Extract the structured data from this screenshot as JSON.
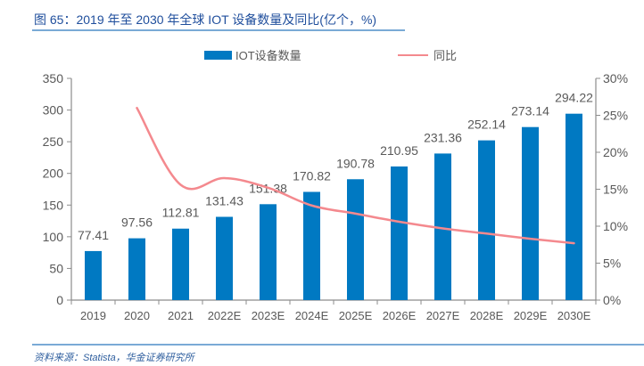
{
  "figure": {
    "title": "图 65：2019 年至 2030 年全球 IOT 设备数量及同比(亿个，%)",
    "source": "资料来源：Statista，华金证券研究所"
  },
  "colors": {
    "bar": "#0079c2",
    "line": "#f4898e",
    "axis": "#8c8c8c",
    "tick_text": "#595959",
    "title": "#1f4e9c",
    "rule": "#7aaad6"
  },
  "chart_data": {
    "type": "bar",
    "title": "2019 年至 2030 年全球 IOT 设备数量及同比(亿个，%)",
    "xlabel": "",
    "ylabel": "",
    "categories": [
      "2019",
      "2020",
      "2021",
      "2022E",
      "2023E",
      "2024E",
      "2025E",
      "2026E",
      "2027E",
      "2028E",
      "2029E",
      "2030E"
    ],
    "series": [
      {
        "name": "IOT设备数量",
        "type": "bar",
        "axis": "left",
        "values": [
          77.41,
          97.56,
          112.81,
          131.43,
          151.38,
          170.82,
          190.78,
          210.95,
          231.36,
          252.14,
          273.14,
          294.22
        ],
        "labels": [
          "77.41",
          "97.56",
          "112.81",
          "131.43",
          "151.38",
          "170.82",
          "190.78",
          "210.95",
          "231.36",
          "252.14",
          "273.14",
          "294.22"
        ]
      },
      {
        "name": "同比",
        "type": "line",
        "axis": "right",
        "unit": "%",
        "values": [
          null,
          26.0,
          15.6,
          16.5,
          15.2,
          12.8,
          11.7,
          10.6,
          9.7,
          9.0,
          8.3,
          7.7
        ]
      }
    ],
    "ylim": [
      0,
      350
    ],
    "yticks": [
      "0",
      "50",
      "100",
      "150",
      "200",
      "250",
      "300",
      "350"
    ],
    "y2lim": [
      0,
      30
    ],
    "y2ticks": [
      "0%",
      "5%",
      "10%",
      "15%",
      "20%",
      "25%",
      "30%"
    ],
    "grid": false,
    "legend": "top-center"
  }
}
